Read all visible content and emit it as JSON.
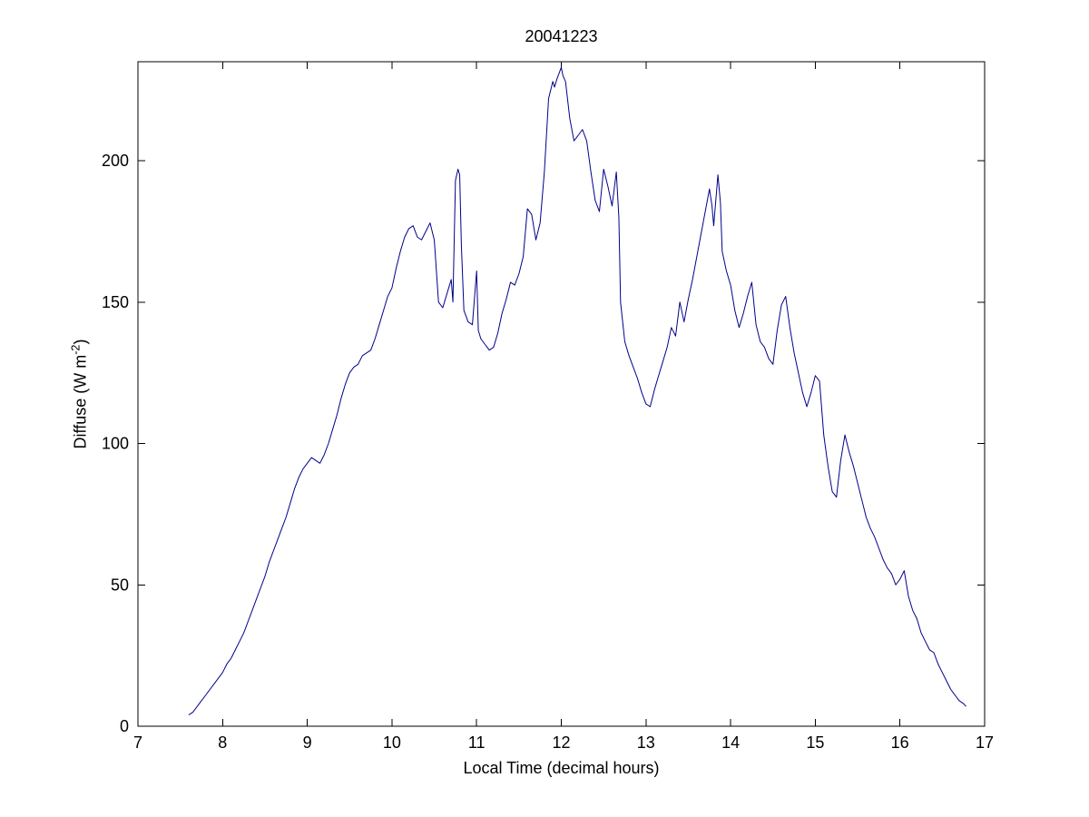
{
  "chart": {
    "title": "20041223",
    "xlabel": "Local Time (decimal hours)",
    "ylabel_prefix": "Diffuse (W m",
    "ylabel_sup": "-2",
    "ylabel_suffix": ")",
    "axis_color": "#000000",
    "background": "#ffffff"
  },
  "chart_data": {
    "type": "line",
    "title": "20041223",
    "xlabel": "Local Time (decimal hours)",
    "ylabel": "Diffuse (W m^-2)",
    "xlim": [
      7,
      17
    ],
    "ylim": [
      0,
      235
    ],
    "xticks": [
      7,
      8,
      9,
      10,
      11,
      12,
      13,
      14,
      15,
      16,
      17
    ],
    "yticks": [
      0,
      50,
      100,
      150,
      200
    ],
    "grid": false,
    "legend": null,
    "series": [
      {
        "name": "Diffuse",
        "color": "#00008B",
        "points": [
          [
            7.6,
            4
          ],
          [
            7.65,
            5
          ],
          [
            7.7,
            7
          ],
          [
            7.75,
            9
          ],
          [
            7.8,
            11
          ],
          [
            7.85,
            13
          ],
          [
            7.9,
            15
          ],
          [
            7.95,
            17
          ],
          [
            8.0,
            19
          ],
          [
            8.05,
            22
          ],
          [
            8.1,
            24
          ],
          [
            8.15,
            27
          ],
          [
            8.2,
            30
          ],
          [
            8.25,
            33
          ],
          [
            8.3,
            37
          ],
          [
            8.35,
            41
          ],
          [
            8.4,
            45
          ],
          [
            8.45,
            49
          ],
          [
            8.5,
            53
          ],
          [
            8.55,
            58
          ],
          [
            8.6,
            62
          ],
          [
            8.65,
            66
          ],
          [
            8.7,
            70
          ],
          [
            8.75,
            74
          ],
          [
            8.8,
            79
          ],
          [
            8.85,
            84
          ],
          [
            8.9,
            88
          ],
          [
            8.95,
            91
          ],
          [
            9.0,
            93
          ],
          [
            9.05,
            95
          ],
          [
            9.1,
            94
          ],
          [
            9.15,
            93
          ],
          [
            9.2,
            96
          ],
          [
            9.25,
            100
          ],
          [
            9.3,
            105
          ],
          [
            9.35,
            110
          ],
          [
            9.4,
            116
          ],
          [
            9.45,
            121
          ],
          [
            9.5,
            125
          ],
          [
            9.55,
            127
          ],
          [
            9.6,
            128
          ],
          [
            9.65,
            131
          ],
          [
            9.7,
            132
          ],
          [
            9.75,
            133
          ],
          [
            9.8,
            137
          ],
          [
            9.85,
            142
          ],
          [
            9.9,
            147
          ],
          [
            9.95,
            152
          ],
          [
            10.0,
            155
          ],
          [
            10.05,
            162
          ],
          [
            10.1,
            168
          ],
          [
            10.15,
            173
          ],
          [
            10.2,
            176
          ],
          [
            10.25,
            177
          ],
          [
            10.3,
            173
          ],
          [
            10.35,
            172
          ],
          [
            10.4,
            175
          ],
          [
            10.45,
            178
          ],
          [
            10.5,
            172
          ],
          [
            10.55,
            150
          ],
          [
            10.6,
            148
          ],
          [
            10.65,
            153
          ],
          [
            10.7,
            158
          ],
          [
            10.72,
            150
          ],
          [
            10.75,
            193
          ],
          [
            10.78,
            197
          ],
          [
            10.8,
            195
          ],
          [
            10.82,
            170
          ],
          [
            10.85,
            147
          ],
          [
            10.9,
            143
          ],
          [
            10.95,
            142
          ],
          [
            11.0,
            161
          ],
          [
            11.02,
            140
          ],
          [
            11.05,
            137
          ],
          [
            11.1,
            135
          ],
          [
            11.15,
            133
          ],
          [
            11.2,
            134
          ],
          [
            11.25,
            139
          ],
          [
            11.3,
            146
          ],
          [
            11.35,
            151
          ],
          [
            11.4,
            157
          ],
          [
            11.45,
            156
          ],
          [
            11.5,
            160
          ],
          [
            11.55,
            166
          ],
          [
            11.6,
            183
          ],
          [
            11.65,
            181
          ],
          [
            11.7,
            172
          ],
          [
            11.75,
            178
          ],
          [
            11.8,
            196
          ],
          [
            11.85,
            222
          ],
          [
            11.9,
            228
          ],
          [
            11.92,
            226
          ],
          [
            11.95,
            229
          ],
          [
            12.0,
            233
          ],
          [
            12.02,
            230
          ],
          [
            12.05,
            228
          ],
          [
            12.1,
            215
          ],
          [
            12.15,
            207
          ],
          [
            12.2,
            209
          ],
          [
            12.25,
            211
          ],
          [
            12.3,
            207
          ],
          [
            12.35,
            196
          ],
          [
            12.4,
            186
          ],
          [
            12.45,
            182
          ],
          [
            12.5,
            197
          ],
          [
            12.55,
            191
          ],
          [
            12.6,
            184
          ],
          [
            12.65,
            196
          ],
          [
            12.68,
            180
          ],
          [
            12.7,
            150
          ],
          [
            12.75,
            136
          ],
          [
            12.8,
            131
          ],
          [
            12.85,
            127
          ],
          [
            12.9,
            123
          ],
          [
            12.95,
            118
          ],
          [
            13.0,
            114
          ],
          [
            13.05,
            113
          ],
          [
            13.1,
            119
          ],
          [
            13.15,
            124
          ],
          [
            13.2,
            129
          ],
          [
            13.25,
            134
          ],
          [
            13.3,
            141
          ],
          [
            13.35,
            138
          ],
          [
            13.4,
            150
          ],
          [
            13.45,
            143
          ],
          [
            13.5,
            151
          ],
          [
            13.55,
            158
          ],
          [
            13.6,
            166
          ],
          [
            13.65,
            174
          ],
          [
            13.7,
            182
          ],
          [
            13.75,
            190
          ],
          [
            13.78,
            184
          ],
          [
            13.8,
            177
          ],
          [
            13.85,
            195
          ],
          [
            13.88,
            185
          ],
          [
            13.9,
            168
          ],
          [
            13.95,
            161
          ],
          [
            14.0,
            156
          ],
          [
            14.05,
            147
          ],
          [
            14.1,
            141
          ],
          [
            14.15,
            146
          ],
          [
            14.2,
            152
          ],
          [
            14.25,
            157
          ],
          [
            14.3,
            142
          ],
          [
            14.35,
            136
          ],
          [
            14.4,
            134
          ],
          [
            14.45,
            130
          ],
          [
            14.5,
            128
          ],
          [
            14.55,
            140
          ],
          [
            14.6,
            149
          ],
          [
            14.65,
            152
          ],
          [
            14.7,
            141
          ],
          [
            14.75,
            132
          ],
          [
            14.8,
            125
          ],
          [
            14.85,
            118
          ],
          [
            14.9,
            113
          ],
          [
            14.95,
            118
          ],
          [
            15.0,
            124
          ],
          [
            15.05,
            122
          ],
          [
            15.1,
            103
          ],
          [
            15.15,
            92
          ],
          [
            15.2,
            83
          ],
          [
            15.25,
            81
          ],
          [
            15.3,
            94
          ],
          [
            15.35,
            103
          ],
          [
            15.4,
            97
          ],
          [
            15.45,
            92
          ],
          [
            15.5,
            86
          ],
          [
            15.55,
            80
          ],
          [
            15.6,
            74
          ],
          [
            15.65,
            70
          ],
          [
            15.7,
            67
          ],
          [
            15.75,
            63
          ],
          [
            15.8,
            59
          ],
          [
            15.85,
            56
          ],
          [
            15.9,
            54
          ],
          [
            15.95,
            50
          ],
          [
            16.0,
            52
          ],
          [
            16.05,
            55
          ],
          [
            16.1,
            46
          ],
          [
            16.15,
            41
          ],
          [
            16.2,
            38
          ],
          [
            16.25,
            33
          ],
          [
            16.3,
            30
          ],
          [
            16.35,
            27
          ],
          [
            16.4,
            26
          ],
          [
            16.45,
            22
          ],
          [
            16.5,
            19
          ],
          [
            16.55,
            16
          ],
          [
            16.6,
            13
          ],
          [
            16.65,
            11
          ],
          [
            16.7,
            9
          ],
          [
            16.75,
            8
          ],
          [
            16.78,
            7
          ]
        ]
      }
    ]
  }
}
